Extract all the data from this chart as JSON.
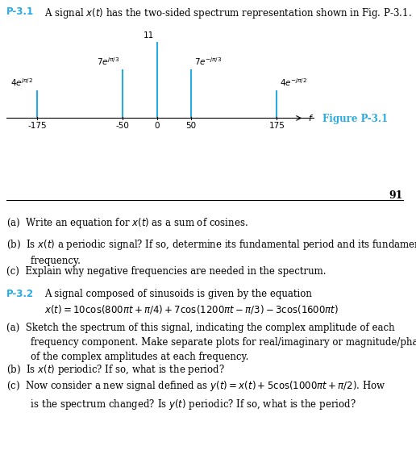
{
  "p31_label": "P-3.1",
  "p31_title": "A signal $x(t)$ has the two-sided spectrum representation shown in Fig. P-3.1.",
  "p31_color": "#29ABE2",
  "p32_color": "#29ABE2",
  "figure_label": "Figure P-3.1",
  "spectrum": {
    "freqs": [
      -175,
      -50,
      0,
      50,
      175
    ],
    "heights": [
      4,
      7,
      11,
      7,
      4
    ],
    "stem_color": "#29ABE2",
    "tick_labels": [
      "-175",
      "-50",
      "0",
      "50",
      "175"
    ],
    "amp_labels": [
      "$4e^{j\\pi/2}$",
      "$7e^{j\\pi/3}$",
      "11",
      "$7e^{-j\\pi/3}$",
      "$4e^{-j\\pi/2}$"
    ],
    "f_label": "$f$"
  },
  "page_number": "91",
  "q31_a": "(a)  Write an equation for $x(t)$ as a sum of cosines.",
  "q31_b": "(b)  Is $x(t)$ a periodic signal? If so, determine its fundamental period and its fundamental\n        frequency.",
  "q31_c": "(c)  Explain why negative frequencies are needed in the spectrum.",
  "p32_label": "P-3.2",
  "p32_intro": "A signal composed of sinusoids is given by the equation",
  "p32_eq": "$x(t) = 10\\cos(800\\pi t + \\pi/4) + 7\\cos(1200\\pi t - \\pi/3) - 3\\cos(1600\\pi t)$",
  "q32_a": "(a)  Sketch the spectrum of this signal, indicating the complex amplitude of each\n        frequency component. Make separate plots for real/imaginary or magnitude/phase\n        of the complex amplitudes at each frequency.",
  "q32_b": "(b)  Is $x(t)$ periodic? If so, what is the period?",
  "q32_c": "(c)  Now consider a new signal defined as $y(t) = x(t) + 5\\cos(1000\\pi t + \\pi/2)$. How\n        is the spectrum changed? Is $y(t)$ periodic? If so, what is the period?"
}
